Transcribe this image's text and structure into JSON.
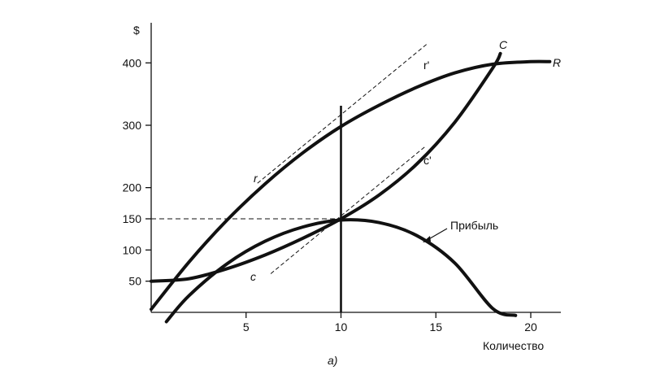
{
  "chart_data": {
    "type": "line",
    "title": "",
    "caption": "а)",
    "xlabel": "Количество",
    "ylabel": "$",
    "xlim": [
      0,
      22
    ],
    "ylim": [
      0,
      440
    ],
    "x_ticks": [
      5,
      10,
      15,
      20
    ],
    "y_ticks": [
      50,
      100,
      150,
      200,
      300,
      400
    ],
    "grid": false,
    "series": [
      {
        "name": "R",
        "tangent_label": "r",
        "tangent_label2": "r'",
        "x": [
          0,
          2,
          4,
          6,
          8,
          10,
          12,
          14,
          16,
          18,
          20,
          21
        ],
        "y": [
          5,
          81,
          148,
          206,
          256,
          298,
          332,
          361,
          384,
          398,
          402,
          402
        ]
      },
      {
        "name": "C",
        "tangent_label": "c",
        "tangent_label2": "c'",
        "x": [
          0,
          2,
          4,
          6,
          8,
          10,
          12,
          14,
          16,
          18,
          18.4
        ],
        "y": [
          50,
          54,
          70,
          92,
          119,
          150,
          188,
          238,
          305,
          392,
          415
        ]
      },
      {
        "name": "Прибыль",
        "x": [
          0.8,
          2,
          4,
          6,
          8,
          10,
          12,
          14,
          16,
          18,
          19.2
        ],
        "y": [
          -15,
          27,
          78,
          114,
          137,
          148,
          144,
          123,
          79,
          6,
          -5
        ]
      }
    ],
    "annotations": {
      "optimum_x": 10,
      "optimum_y": 150,
      "tangent_r": {
        "x": [
          5.6,
          14.6
        ],
        "y": [
          207,
          432
        ]
      },
      "tangent_c": {
        "x": [
          6.3,
          14.4
        ],
        "y": [
          62,
          265
        ]
      }
    }
  }
}
